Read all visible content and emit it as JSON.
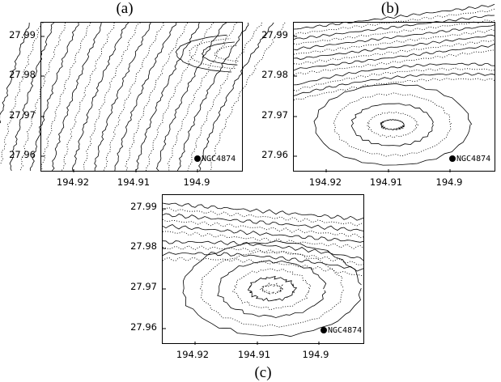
{
  "figure": {
    "panels": [
      {
        "label": "(a)",
        "y_ticks": [
          "27.99",
          "27.98",
          "27.97",
          "27.96"
        ],
        "x_ticks": [
          "194.92",
          "194.91",
          "194.9"
        ],
        "marker_label": "NGC4874"
      },
      {
        "label": "(b)",
        "y_ticks": [
          "27.99",
          "27.98",
          "27.97",
          "27.96"
        ],
        "x_ticks": [
          "194.92",
          "194.91",
          "194.9"
        ],
        "marker_label": "NGC4874"
      },
      {
        "label": "(c)",
        "y_ticks": [
          "27.99",
          "27.98",
          "27.97",
          "27.96"
        ],
        "x_ticks": [
          "194.92",
          "194.91",
          "194.9"
        ],
        "marker_label": "NGC4874"
      }
    ]
  },
  "colors": {
    "line": "#000000",
    "background": "#ffffff"
  }
}
